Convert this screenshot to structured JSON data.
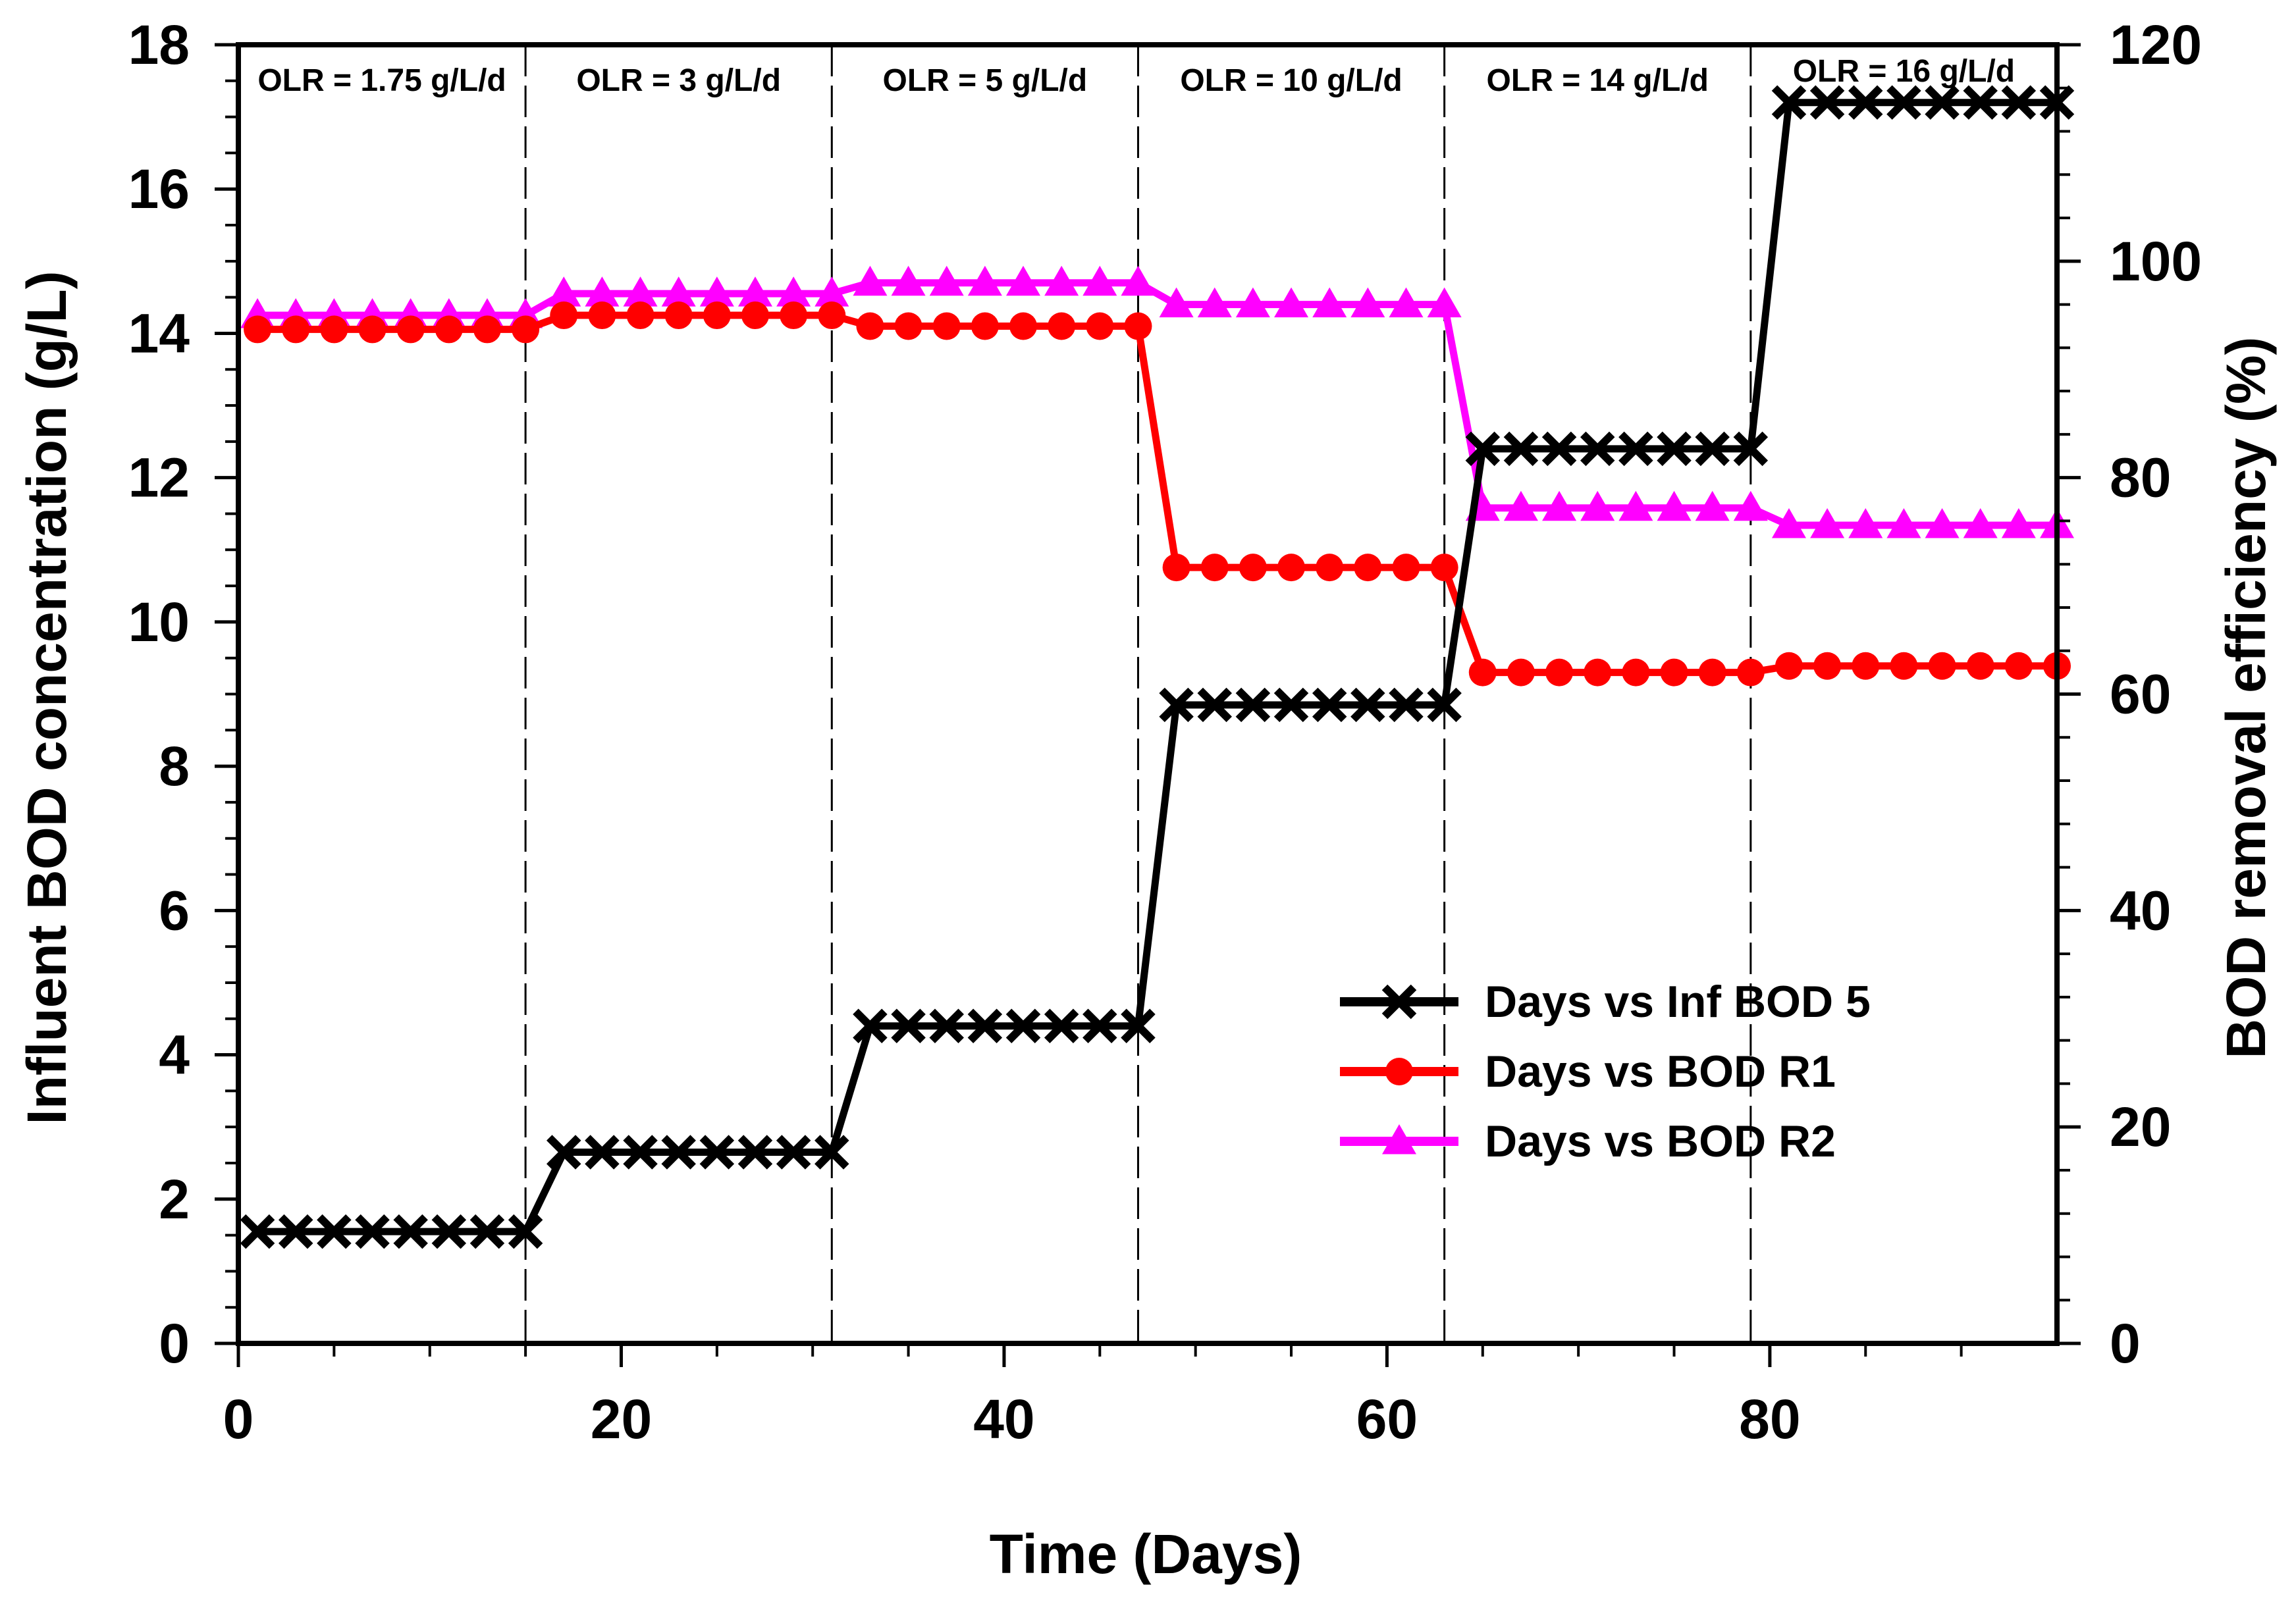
{
  "chart_data": {
    "type": "line",
    "title": "",
    "xlabel": "Time (Days)",
    "ylabel": "Influent BOD concentration (g/L)",
    "y2label": "BOD removal efficiency (%)",
    "xlim": [
      0,
      95
    ],
    "ylim": [
      0,
      18
    ],
    "y2lim": [
      0,
      120
    ],
    "xticks": [
      0,
      20,
      40,
      60,
      80
    ],
    "yticks": [
      0,
      2,
      4,
      6,
      8,
      10,
      12,
      14,
      16,
      18
    ],
    "y2ticks": [
      0,
      20,
      40,
      60,
      80,
      100,
      120
    ],
    "grid": false,
    "legend_position": "lower-right",
    "phase_boundaries": [
      15,
      31,
      47,
      63,
      79
    ],
    "phases": [
      {
        "label": "OLR = 1.75 g/L/d",
        "start": 0,
        "end": 15
      },
      {
        "label": "OLR = 3 g/L/d",
        "start": 15,
        "end": 31
      },
      {
        "label": "OLR = 5 g/L/d",
        "start": 31,
        "end": 47
      },
      {
        "label": "OLR = 10 g/L/d",
        "start": 47,
        "end": 63
      },
      {
        "label": "OLR = 14 g/L/d",
        "start": 63,
        "end": 79
      },
      {
        "label": "OLR = 16 g/L/d",
        "start": 79,
        "end": 95
      }
    ],
    "x": [
      1,
      3,
      5,
      7,
      9,
      11,
      13,
      15,
      17,
      19,
      21,
      23,
      25,
      27,
      29,
      31,
      33,
      35,
      37,
      39,
      41,
      43,
      45,
      47,
      49,
      51,
      53,
      55,
      57,
      59,
      61,
      63,
      65,
      67,
      69,
      71,
      73,
      75,
      77,
      79,
      81,
      83,
      85,
      87,
      89,
      91,
      93,
      95
    ],
    "series": [
      {
        "name": "Days vs Inf BOD 5",
        "axis": "left",
        "color": "#000000",
        "marker": "x",
        "values": [
          1.55,
          1.55,
          1.55,
          1.55,
          1.55,
          1.55,
          1.55,
          1.55,
          2.65,
          2.65,
          2.65,
          2.65,
          2.65,
          2.65,
          2.65,
          2.65,
          4.4,
          4.4,
          4.4,
          4.4,
          4.4,
          4.4,
          4.4,
          4.4,
          8.85,
          8.85,
          8.85,
          8.85,
          8.85,
          8.85,
          8.85,
          8.85,
          12.4,
          12.4,
          12.4,
          12.4,
          12.4,
          12.4,
          12.4,
          12.4,
          17.2,
          17.2,
          17.2,
          17.2,
          17.2,
          17.2,
          17.2,
          17.2
        ]
      },
      {
        "name": "Days vs BOD R1",
        "axis": "right",
        "color": "#ff0000",
        "marker": "circle",
        "values": [
          93.7,
          93.7,
          93.7,
          93.7,
          93.7,
          93.7,
          93.7,
          93.7,
          95,
          95,
          95,
          95,
          95,
          95,
          95,
          95,
          94,
          94,
          94,
          94,
          94,
          94,
          94,
          94,
          71.7,
          71.7,
          71.7,
          71.7,
          71.7,
          71.7,
          71.7,
          71.7,
          62,
          62,
          62,
          62,
          62,
          62,
          62,
          62,
          62.6,
          62.6,
          62.6,
          62.6,
          62.6,
          62.6,
          62.6,
          62.6
        ]
      },
      {
        "name": "Days vs BOD R2",
        "axis": "right",
        "color": "#ff00ff",
        "marker": "triangle",
        "values": [
          95,
          95,
          95,
          95,
          95,
          95,
          95,
          95,
          97,
          97,
          97,
          97,
          97,
          97,
          97,
          97,
          98,
          98,
          98,
          98,
          98,
          98,
          98,
          98,
          96,
          96,
          96,
          96,
          96,
          96,
          96,
          96,
          77.2,
          77.2,
          77.2,
          77.2,
          77.2,
          77.2,
          77.2,
          77.2,
          75.6,
          75.6,
          75.6,
          75.6,
          75.6,
          75.6,
          75.6,
          75.6
        ]
      }
    ]
  }
}
